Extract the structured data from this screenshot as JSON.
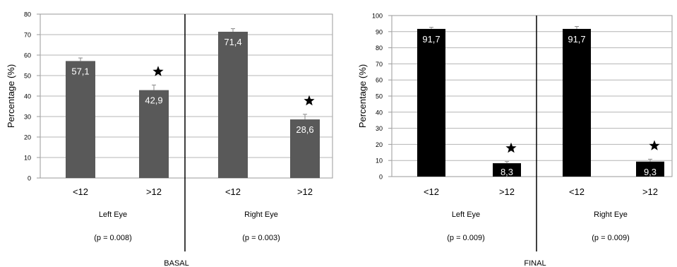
{
  "chart_data": [
    {
      "type": "bar",
      "title": "",
      "ylabel": "Percentage (%)",
      "ylim": [
        0,
        80
      ],
      "yticks": [
        0,
        10,
        20,
        30,
        40,
        50,
        60,
        70,
        80
      ],
      "grid": true,
      "bar_color": "#595959",
      "label_color": "#ffffff",
      "groups": [
        {
          "name": "Left Eye",
          "pvalue": "(p = 0.008)"
        },
        {
          "name": "Right Eye",
          "pvalue": "(p = 0.003)"
        }
      ],
      "categories": [
        "<12",
        ">12",
        "<12",
        ">12"
      ],
      "values": [
        57.1,
        42.9,
        71.4,
        28.6
      ],
      "value_labels": [
        "57,1",
        "42,9",
        "71,4",
        "28,6"
      ],
      "errors": [
        1.5,
        2.5,
        1.5,
        2.5
      ],
      "stars": [
        false,
        true,
        false,
        true
      ],
      "caption": "BASAL"
    },
    {
      "type": "bar",
      "title": "",
      "ylabel": "Percentage (%)",
      "ylim": [
        0,
        100
      ],
      "yticks": [
        0,
        10,
        20,
        30,
        40,
        50,
        60,
        70,
        80,
        90,
        100
      ],
      "grid": true,
      "bar_color": "#000000",
      "label_color": "#ffffff",
      "groups": [
        {
          "name": "Left Eye",
          "pvalue": "(p = 0.009)"
        },
        {
          "name": "Right Eye",
          "pvalue": "(p = 0.009)"
        }
      ],
      "categories": [
        "<12",
        ">12",
        "<12",
        ">12"
      ],
      "values": [
        91.7,
        8.3,
        91.7,
        9.3
      ],
      "value_labels": [
        "91,7",
        "8,3",
        "91,7",
        "9,3"
      ],
      "errors": [
        1.0,
        1.0,
        1.5,
        1.5
      ],
      "stars": [
        false,
        true,
        false,
        true
      ],
      "caption": "FINAL"
    }
  ]
}
